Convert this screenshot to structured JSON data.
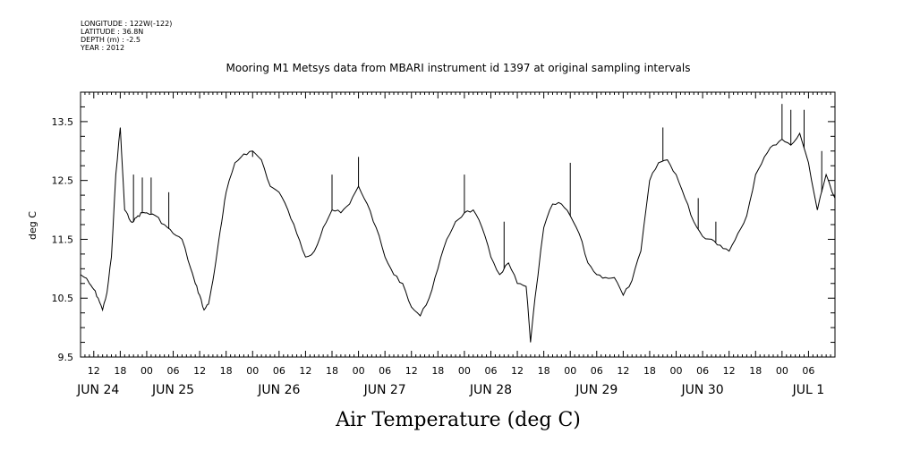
{
  "header": {
    "longitude": "LONGITUDE : 122W(-122)",
    "latitude": "LATITUDE : 36.8N",
    "depth": "DEPTH (m) : -2.5",
    "year": "YEAR : 2012"
  },
  "chart_data": {
    "type": "line",
    "title": "Mooring M1 Metsys data from MBARI instrument id 1397 at original sampling intervals",
    "xlabel": "Air Temperature (deg C)",
    "ylabel": "deg C",
    "ylim": [
      9.5,
      14.0
    ],
    "yticks": [
      9.5,
      10.5,
      11.5,
      12.5,
      13.5
    ],
    "xlim": [
      "2012-06-24 09:00",
      "2012-07-01 12:00"
    ],
    "hour_tick_labels": [
      "12",
      "18",
      "00",
      "06",
      "12",
      "18",
      "00",
      "06",
      "12",
      "18",
      "00",
      "06",
      "12",
      "18",
      "00",
      "06",
      "12",
      "18",
      "00",
      "06",
      "12",
      "18",
      "00",
      "06",
      "12",
      "18",
      "00",
      "06"
    ],
    "day_labels": [
      "JUN 24",
      "JUN 25",
      "JUN 26",
      "JUN 27",
      "JUN 28",
      "JUN 29",
      "JUN 30",
      "JUL 1"
    ],
    "grid": false,
    "series": [
      {
        "x": [
          "2012-06-24 09:00",
          "2012-06-24 10:00",
          "2012-06-24 11:00",
          "2012-06-24 12:00",
          "2012-06-24 13:00",
          "2012-06-24 14:00",
          "2012-06-24 15:00",
          "2012-06-24 16:00",
          "2012-06-24 17:00",
          "2012-06-24 18:00",
          "2012-06-24 19:00",
          "2012-06-24 20:00",
          "2012-06-24 21:00",
          "2012-06-24 22:00",
          "2012-06-24 23:00",
          "2012-06-25 00:00",
          "2012-06-25 02:00",
          "2012-06-25 04:00",
          "2012-06-25 06:00",
          "2012-06-25 08:00",
          "2012-06-25 10:00",
          "2012-06-25 11:00",
          "2012-06-25 12:00",
          "2012-06-25 13:00",
          "2012-06-25 14:00",
          "2012-06-25 15:00",
          "2012-06-25 16:00",
          "2012-06-25 17:00",
          "2012-06-25 18:00",
          "2012-06-25 20:00",
          "2012-06-25 22:00",
          "2012-06-26 00:00",
          "2012-06-26 02:00",
          "2012-06-26 04:00",
          "2012-06-26 06:00",
          "2012-06-26 08:00",
          "2012-06-26 10:00",
          "2012-06-26 12:00",
          "2012-06-26 14:00",
          "2012-06-26 16:00",
          "2012-06-26 18:00",
          "2012-06-26 20:00",
          "2012-06-26 22:00",
          "2012-06-27 00:00",
          "2012-06-27 02:00",
          "2012-06-27 04:00",
          "2012-06-27 06:00",
          "2012-06-27 08:00",
          "2012-06-27 10:00",
          "2012-06-27 12:00",
          "2012-06-27 14:00",
          "2012-06-27 16:00",
          "2012-06-27 18:00",
          "2012-06-27 20:00",
          "2012-06-27 22:00",
          "2012-06-28 00:00",
          "2012-06-28 02:00",
          "2012-06-28 04:00",
          "2012-06-28 06:00",
          "2012-06-28 08:00",
          "2012-06-28 10:00",
          "2012-06-28 12:00",
          "2012-06-28 14:00",
          "2012-06-28 15:00",
          "2012-06-28 16:00",
          "2012-06-28 18:00",
          "2012-06-28 20:00",
          "2012-06-28 22:00",
          "2012-06-29 00:00",
          "2012-06-29 02:00",
          "2012-06-29 04:00",
          "2012-06-29 06:00",
          "2012-06-29 08:00",
          "2012-06-29 10:00",
          "2012-06-29 12:00",
          "2012-06-29 14:00",
          "2012-06-29 16:00",
          "2012-06-29 18:00",
          "2012-06-29 20:00",
          "2012-06-29 22:00",
          "2012-06-30 00:00",
          "2012-06-30 02:00",
          "2012-06-30 04:00",
          "2012-06-30 06:00",
          "2012-06-30 08:00",
          "2012-06-30 10:00",
          "2012-06-30 12:00",
          "2012-06-30 14:00",
          "2012-06-30 16:00",
          "2012-06-30 18:00",
          "2012-06-30 20:00",
          "2012-06-30 22:00",
          "2012-07-01 00:00",
          "2012-07-01 02:00",
          "2012-07-01 04:00",
          "2012-07-01 06:00",
          "2012-07-01 08:00",
          "2012-07-01 10:00",
          "2012-07-01 12:00"
        ],
        "y": [
          10.9,
          10.85,
          10.75,
          10.65,
          10.5,
          10.3,
          10.6,
          11.2,
          12.6,
          13.4,
          12.0,
          11.85,
          11.8,
          11.9,
          11.95,
          11.95,
          11.9,
          11.75,
          11.6,
          11.5,
          11.0,
          10.75,
          10.55,
          10.3,
          10.4,
          10.8,
          11.3,
          11.8,
          12.3,
          12.8,
          12.95,
          13.0,
          12.85,
          12.4,
          12.3,
          12.0,
          11.6,
          11.2,
          11.3,
          11.7,
          12.0,
          11.95,
          12.1,
          12.4,
          12.1,
          11.7,
          11.2,
          10.9,
          10.75,
          10.35,
          10.2,
          10.5,
          11.0,
          11.5,
          11.8,
          11.95,
          12.0,
          11.7,
          11.2,
          10.9,
          11.1,
          10.75,
          10.7,
          9.75,
          10.5,
          11.7,
          12.1,
          12.1,
          11.9,
          11.6,
          11.1,
          10.9,
          10.85,
          10.85,
          10.55,
          10.8,
          11.3,
          12.5,
          12.8,
          12.85,
          12.6,
          12.2,
          11.8,
          11.55,
          11.5,
          11.4,
          11.3,
          11.6,
          11.9,
          12.6,
          12.9,
          13.1,
          13.2,
          13.1,
          13.3,
          12.8,
          12.0,
          12.6,
          12.2
        ],
        "spikes": [
          {
            "x": "2012-06-24 21:00",
            "y": 12.6
          },
          {
            "x": "2012-06-24 23:00",
            "y": 12.55
          },
          {
            "x": "2012-06-25 01:00",
            "y": 12.55
          },
          {
            "x": "2012-06-25 05:00",
            "y": 12.3
          },
          {
            "x": "2012-06-26 00:00",
            "y": 12.9
          },
          {
            "x": "2012-06-26 18:00",
            "y": 12.6
          },
          {
            "x": "2012-06-27 00:00",
            "y": 12.9
          },
          {
            "x": "2012-06-28 00:00",
            "y": 12.6
          },
          {
            "x": "2012-06-28 09:00",
            "y": 11.8
          },
          {
            "x": "2012-06-29 00:00",
            "y": 12.8
          },
          {
            "x": "2012-06-29 21:00",
            "y": 13.4
          },
          {
            "x": "2012-06-30 05:00",
            "y": 12.2
          },
          {
            "x": "2012-06-30 09:00",
            "y": 11.8
          },
          {
            "x": "2012-07-01 00:00",
            "y": 13.8
          },
          {
            "x": "2012-07-01 02:00",
            "y": 13.7
          },
          {
            "x": "2012-07-01 05:00",
            "y": 13.7
          },
          {
            "x": "2012-07-01 09:00",
            "y": 13.0
          }
        ]
      }
    ]
  }
}
